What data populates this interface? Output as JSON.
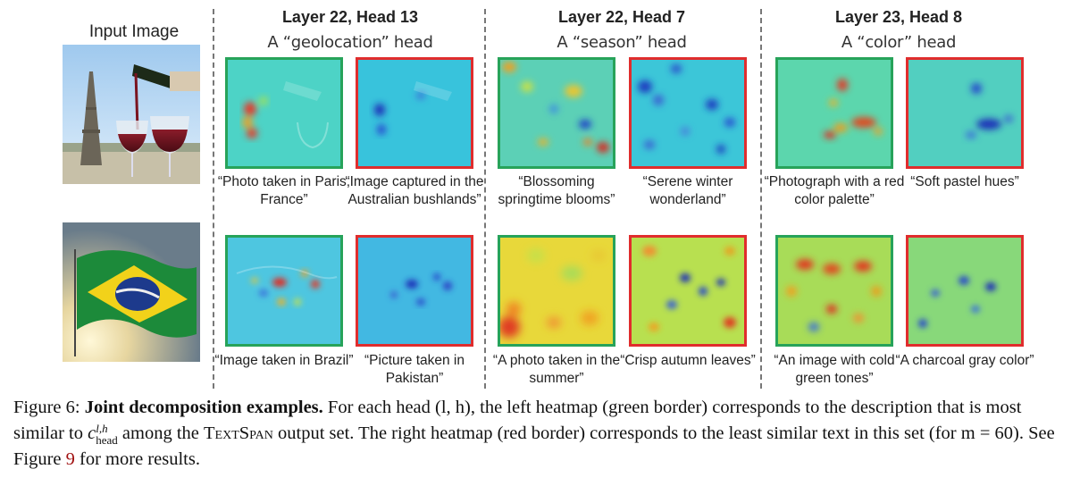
{
  "input_title": "Input Image",
  "heads": [
    {
      "title": "Layer 22, Head 13",
      "subtitle": "A “geolocation” head"
    },
    {
      "title": "Layer 22, Head 7",
      "subtitle": "A “season” head"
    },
    {
      "title": "Layer 23, Head 8",
      "subtitle": "A “color” head"
    }
  ],
  "rows": [
    {
      "image": "paris-wine-photo",
      "captions": [
        "“Photo taken in Paris, France”",
        "“Image captured in the Australian bushlands”",
        "“Blossoming springtime blooms”",
        "“Serene winter wonderland”",
        "“Photograph with a red color palette”",
        "“Soft pastel hues”"
      ]
    },
    {
      "image": "brazil-flag-photo",
      "captions": [
        "“Image taken in Brazil”",
        "“Picture taken in Pakistan”",
        "“A photo taken in the summer”",
        "“Crisp autumn leaves”",
        "“An image with cold green tones”",
        "“A charcoal gray color”"
      ]
    }
  ],
  "colors": {
    "most_similar_border": "#27a35a",
    "least_similar_border": "#e02d2d"
  },
  "figure_caption": {
    "label": "Figure 6:",
    "bold": "Joint decomposition examples.",
    "text_1": " For each head (l, h), the left heatmap (green border) corresponds to the description that is most similar to ",
    "math": "c",
    "math_sup": "l,h",
    "math_sub": "head",
    "text_2": " among the ",
    "textspan": "TextSpan",
    "text_3": " output set. The right heatmap (red border) corresponds to the least similar text in this set (for m = 60). See Figure ",
    "figure_ref": "9",
    "text_4": " for more results."
  }
}
